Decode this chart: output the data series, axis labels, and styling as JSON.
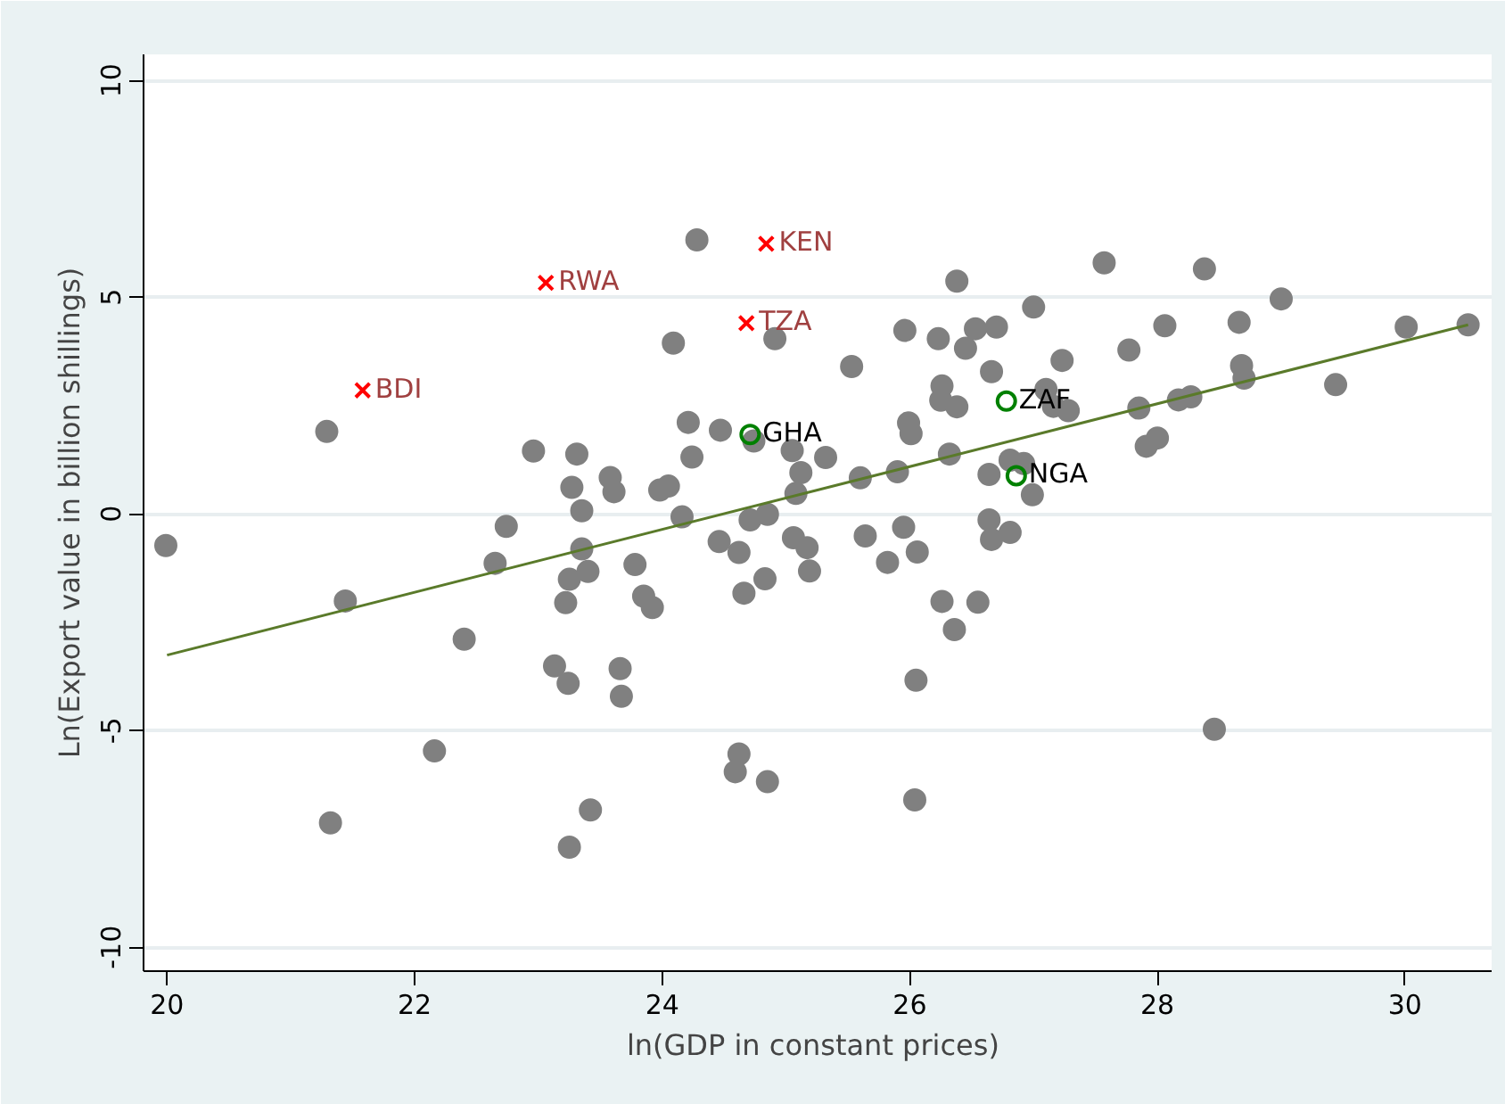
{
  "chart_data": {
    "type": "scatter",
    "xlabel": "ln(GDP in constant  prices)",
    "ylabel": "Ln(Export value in billion shillings)",
    "xlim": [
      19.81,
      30.7
    ],
    "ylim": [
      -10.55,
      10.6
    ],
    "xticks": [
      20,
      22,
      24,
      26,
      28,
      30
    ],
    "yticks": [
      -10,
      -5,
      0,
      5,
      10
    ],
    "grid": "y",
    "series": [
      {
        "color": "#808080",
        "x": [
          24.28,
          24.09,
          21.29,
          24.21,
          24.47,
          22.96,
          23.31,
          24.24,
          23.58,
          23.27,
          23.61,
          23.98,
          24.05,
          23.35,
          24.16,
          22.74,
          19.99,
          23.35,
          24.46,
          24.62,
          22.65,
          23.78,
          23.4,
          23.25,
          21.44,
          23.22,
          23.85,
          23.92,
          24.83,
          24.66,
          25.17,
          25.19,
          25.06,
          22.4,
          23.13,
          23.24,
          23.66,
          23.67,
          22.16,
          21.32,
          23.42,
          23.25,
          24.62,
          24.59,
          24.85,
          24.91,
          26.38,
          27.57,
          28.38,
          27.0,
          29.0,
          25.96,
          26.23,
          26.53,
          26.7,
          26.45,
          28.06,
          28.66,
          30.01,
          30.51,
          25.53,
          27.23,
          27.77,
          26.66,
          28.68,
          28.7,
          29.44,
          26.26,
          26.25,
          26.38,
          27.1,
          27.16,
          27.28,
          27.85,
          28.17,
          28.27,
          27.91,
          28.0,
          24.74,
          25.05,
          25.32,
          25.12,
          25.08,
          25.6,
          25.9,
          25.99,
          26.01,
          26.32,
          26.81,
          26.92,
          26.64,
          26.99,
          24.71,
          24.85,
          25.64,
          25.95,
          25.82,
          26.06,
          26.64,
          26.66,
          26.81,
          26.26,
          26.55,
          26.36,
          26.05,
          28.46,
          26.04
        ],
        "values": [
          6.32,
          3.94,
          1.9,
          2.11,
          1.93,
          1.45,
          1.38,
          1.31,
          0.84,
          0.61,
          0.51,
          0.55,
          0.64,
          0.07,
          -0.07,
          -0.29,
          -0.73,
          -0.81,
          -0.64,
          -0.89,
          -1.14,
          -1.17,
          -1.33,
          -1.51,
          -2.01,
          -2.05,
          -1.9,
          -2.16,
          -1.5,
          -1.83,
          -0.78,
          -1.32,
          -0.55,
          -2.89,
          -3.51,
          -3.91,
          -3.57,
          -4.21,
          -5.47,
          -7.13,
          -6.83,
          -7.69,
          -5.54,
          -5.95,
          -6.18,
          4.04,
          5.37,
          5.79,
          5.65,
          4.77,
          4.96,
          4.23,
          4.04,
          4.27,
          4.31,
          3.82,
          4.34,
          4.42,
          4.31,
          4.36,
          3.4,
          3.54,
          3.78,
          3.28,
          3.42,
          3.13,
          2.98,
          2.95,
          2.62,
          2.47,
          2.87,
          2.48,
          2.38,
          2.44,
          2.63,
          2.7,
          1.56,
          1.75,
          1.68,
          1.46,
          1.3,
          0.95,
          0.47,
          0.83,
          0.97,
          2.1,
          1.85,
          1.38,
          1.24,
          1.16,
          0.91,
          0.44,
          -0.14,
          -0.01,
          -0.51,
          -0.31,
          -1.12,
          -0.88,
          -0.14,
          -0.59,
          -0.43,
          -2.02,
          -2.04,
          -2.67,
          -3.84,
          -4.97,
          -6.6
        ]
      },
      {
        "color": "#ff0000",
        "x": [
          24.84,
          24.68,
          23.06,
          21.58
        ],
        "values": [
          6.23,
          4.4,
          5.33,
          2.85
        ]
      },
      {
        "color": "#008000",
        "x": [
          24.71,
          26.78,
          26.86
        ],
        "values": [
          1.83,
          2.6,
          0.88
        ]
      },
      {
        "type": "line",
        "color": "#5a7a2a",
        "x": [
          20.0,
          30.51
        ],
        "values": [
          -3.26,
          4.36
        ]
      }
    ],
    "annotations": [
      {
        "text": "KEN",
        "x": 24.84,
        "y": 6.23
      },
      {
        "text": "TZA",
        "x": 24.68,
        "y": 4.4
      },
      {
        "text": "RWA",
        "x": 23.06,
        "y": 5.33
      },
      {
        "text": "BDI",
        "x": 21.58,
        "y": 2.85
      },
      {
        "text": "GHA",
        "x": 24.71,
        "y": 1.83
      },
      {
        "text": "ZAF",
        "x": 26.78,
        "y": 2.6
      },
      {
        "text": "NGA",
        "x": 26.86,
        "y": 0.88
      }
    ]
  }
}
